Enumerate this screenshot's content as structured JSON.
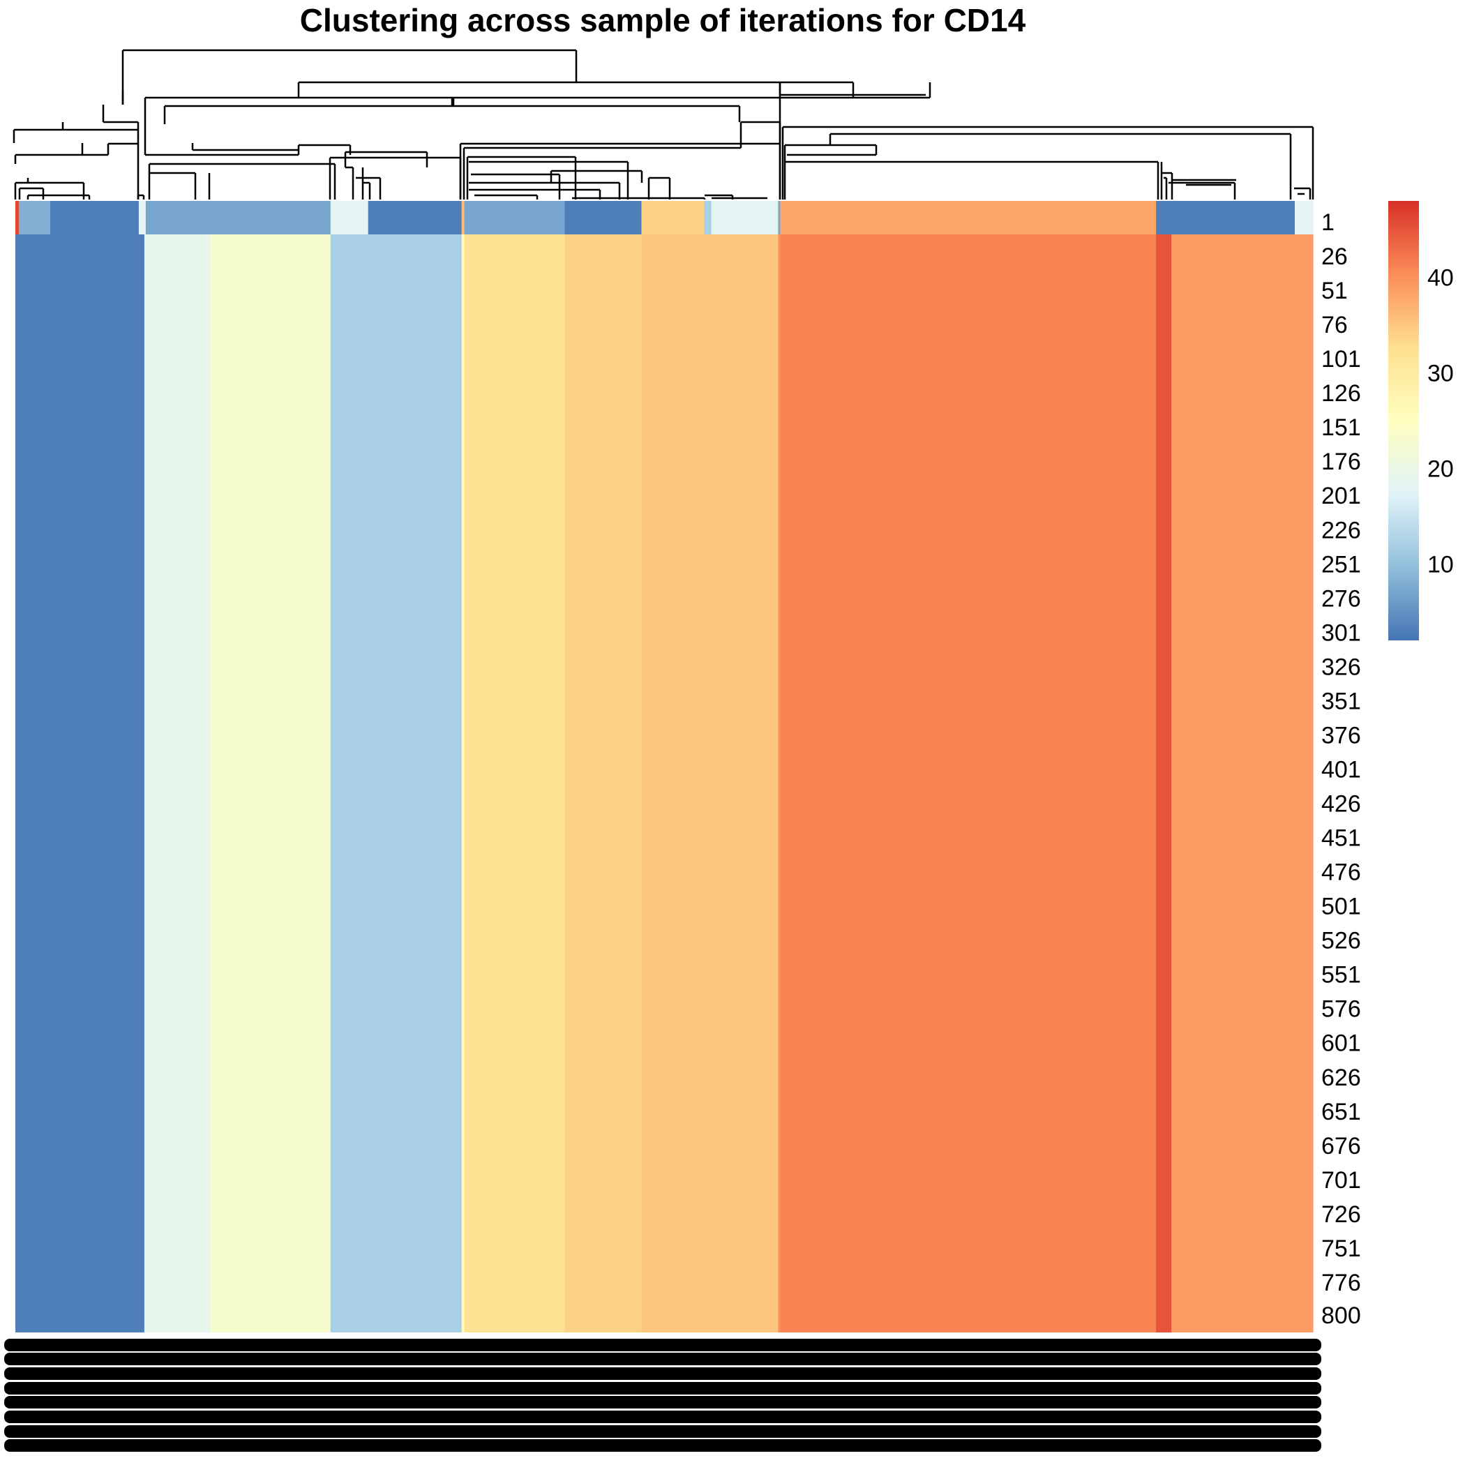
{
  "chart_data": {
    "type": "heatmap",
    "title": "Clustering across sample of iterations for CD14",
    "row_labels": [
      "1",
      "26",
      "51",
      "76",
      "101",
      "126",
      "151",
      "176",
      "201",
      "226",
      "251",
      "276",
      "301",
      "326",
      "351",
      "376",
      "401",
      "426",
      "451",
      "476",
      "501",
      "526",
      "551",
      "576",
      "601",
      "626",
      "651",
      "676",
      "701",
      "726",
      "751",
      "776",
      "800"
    ],
    "row_range": [
      1,
      800
    ],
    "columns": 1861,
    "top_row_blocks": [
      {
        "from": 0,
        "to": 5,
        "value": 46
      },
      {
        "from": 5,
        "to": 50,
        "value": 8
      },
      {
        "from": 50,
        "to": 177,
        "value": 3
      },
      {
        "from": 177,
        "to": 187,
        "value": 18
      },
      {
        "from": 187,
        "to": 280,
        "value": 7
      },
      {
        "from": 280,
        "to": 452,
        "value": 7
      },
      {
        "from": 452,
        "to": 506,
        "value": 18
      },
      {
        "from": 506,
        "to": 640,
        "value": 3
      },
      {
        "from": 640,
        "to": 644,
        "value": 36
      },
      {
        "from": 644,
        "to": 788,
        "value": 7
      },
      {
        "from": 788,
        "to": 898,
        "value": 3
      },
      {
        "from": 898,
        "to": 988,
        "value": 34
      },
      {
        "from": 988,
        "to": 998,
        "value": 12
      },
      {
        "from": 998,
        "to": 1094,
        "value": 18
      },
      {
        "from": 1094,
        "to": 1097,
        "value": 7
      },
      {
        "from": 1097,
        "to": 1636,
        "value": 38
      },
      {
        "from": 1636,
        "to": 1658,
        "value": 3
      },
      {
        "from": 1658,
        "to": 1835,
        "value": 3
      },
      {
        "from": 1835,
        "to": 1861,
        "value": 18
      }
    ],
    "body_blocks": [
      {
        "from": 0,
        "to": 185,
        "value": 3
      },
      {
        "from": 185,
        "to": 280,
        "value": 19
      },
      {
        "from": 280,
        "to": 452,
        "value": 23
      },
      {
        "from": 452,
        "to": 640,
        "value": 12
      },
      {
        "from": 640,
        "to": 644,
        "value": 26
      },
      {
        "from": 644,
        "to": 788,
        "value": 32
      },
      {
        "from": 788,
        "to": 898,
        "value": 34
      },
      {
        "from": 898,
        "to": 1094,
        "value": 35
      },
      {
        "from": 1094,
        "to": 1097,
        "value": 40
      },
      {
        "from": 1097,
        "to": 1636,
        "value": 41
      },
      {
        "from": 1636,
        "to": 1658,
        "value": 45
      },
      {
        "from": 1658,
        "to": 1861,
        "value": 39
      }
    ],
    "colorbar": {
      "ticks": [
        10,
        20,
        30,
        40
      ],
      "range": [
        2,
        48
      ],
      "colors": [
        "#4575b4",
        "#91bfdb",
        "#e0f3f8",
        "#ffffbf",
        "#fee090",
        "#fc8d59",
        "#d73027"
      ]
    },
    "column_labels": "illegible (overplotted, rendered as solid black bars)",
    "legend": "right"
  }
}
